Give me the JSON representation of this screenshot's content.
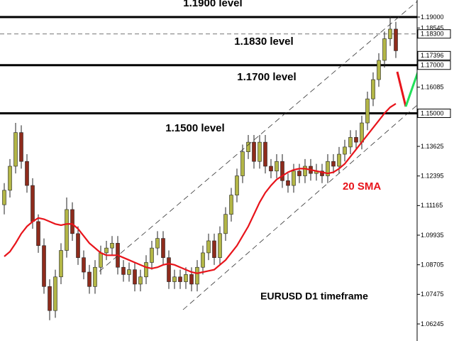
{
  "chart_data": {
    "type": "candlestick",
    "title": "EURUSD D1 timeframe",
    "up_color": "#b3b646",
    "down_color": "#8e2b1c",
    "candles": [
      [
        1.112,
        1.121,
        1.108,
        1.118
      ],
      [
        1.118,
        1.131,
        1.115,
        1.128
      ],
      [
        1.128,
        1.146,
        1.125,
        1.142
      ],
      [
        1.142,
        1.145,
        1.127,
        1.13
      ],
      [
        1.13,
        1.133,
        1.117,
        1.12
      ],
      [
        1.12,
        1.123,
        1.102,
        1.105
      ],
      [
        1.105,
        1.108,
        1.092,
        1.095
      ],
      [
        1.095,
        1.098,
        1.075,
        1.078
      ],
      [
        1.078,
        1.081,
        1.064,
        1.068
      ],
      [
        1.068,
        1.085,
        1.065,
        1.082
      ],
      [
        1.082,
        1.096,
        1.079,
        1.093
      ],
      [
        1.093,
        1.115,
        1.09,
        1.11
      ],
      [
        1.11,
        1.113,
        1.097,
        1.1
      ],
      [
        1.1,
        1.103,
        1.087,
        1.09
      ],
      [
        1.09,
        1.093,
        1.081,
        1.084
      ],
      [
        1.084,
        1.087,
        1.075,
        1.078
      ],
      [
        1.078,
        1.089,
        1.075,
        1.086
      ],
      [
        1.086,
        1.095,
        1.083,
        1.092
      ],
      [
        1.092,
        1.097,
        1.089,
        1.094
      ],
      [
        1.094,
        1.099,
        1.091,
        1.096
      ],
      [
        1.096,
        1.099,
        1.083,
        1.086
      ],
      [
        1.086,
        1.089,
        1.08,
        1.083
      ],
      [
        1.083,
        1.088,
        1.08,
        1.085
      ],
      [
        1.085,
        1.088,
        1.076,
        1.079
      ],
      [
        1.079,
        1.085,
        1.076,
        1.082
      ],
      [
        1.082,
        1.091,
        1.079,
        1.088
      ],
      [
        1.088,
        1.097,
        1.085,
        1.094
      ],
      [
        1.094,
        1.101,
        1.091,
        1.098
      ],
      [
        1.098,
        1.101,
        1.087,
        1.09
      ],
      [
        1.09,
        1.093,
        1.077,
        1.08
      ],
      [
        1.08,
        1.085,
        1.077,
        1.082
      ],
      [
        1.082,
        1.085,
        1.077,
        1.08
      ],
      [
        1.08,
        1.086,
        1.077,
        1.083
      ],
      [
        1.083,
        1.086,
        1.076,
        1.079
      ],
      [
        1.079,
        1.089,
        1.076,
        1.086
      ],
      [
        1.086,
        1.095,
        1.083,
        1.092
      ],
      [
        1.092,
        1.1,
        1.089,
        1.097
      ],
      [
        1.097,
        1.1,
        1.087,
        1.09
      ],
      [
        1.09,
        1.103,
        1.087,
        1.1
      ],
      [
        1.1,
        1.111,
        1.097,
        1.108
      ],
      [
        1.108,
        1.119,
        1.105,
        1.116
      ],
      [
        1.116,
        1.127,
        1.113,
        1.124
      ],
      [
        1.124,
        1.137,
        1.121,
        1.134
      ],
      [
        1.134,
        1.141,
        1.131,
        1.138
      ],
      [
        1.138,
        1.141,
        1.127,
        1.13
      ],
      [
        1.13,
        1.141,
        1.127,
        1.138
      ],
      [
        1.138,
        1.141,
        1.125,
        1.128
      ],
      [
        1.128,
        1.131,
        1.123,
        1.126
      ],
      [
        1.126,
        1.133,
        1.123,
        1.13
      ],
      [
        1.13,
        1.133,
        1.119,
        1.122
      ],
      [
        1.122,
        1.125,
        1.117,
        1.12
      ],
      [
        1.12,
        1.129,
        1.117,
        1.126
      ],
      [
        1.126,
        1.129,
        1.121,
        1.124
      ],
      [
        1.124,
        1.131,
        1.121,
        1.128
      ],
      [
        1.128,
        1.131,
        1.122,
        1.125
      ],
      [
        1.125,
        1.129,
        1.122,
        1.126
      ],
      [
        1.126,
        1.129,
        1.121,
        1.124
      ],
      [
        1.124,
        1.133,
        1.121,
        1.13
      ],
      [
        1.13,
        1.133,
        1.125,
        1.128
      ],
      [
        1.128,
        1.136,
        1.125,
        1.133
      ],
      [
        1.133,
        1.139,
        1.13,
        1.136
      ],
      [
        1.136,
        1.143,
        1.133,
        1.14
      ],
      [
        1.14,
        1.143,
        1.135,
        1.138
      ],
      [
        1.138,
        1.149,
        1.135,
        1.146
      ],
      [
        1.146,
        1.159,
        1.143,
        1.156
      ],
      [
        1.156,
        1.167,
        1.153,
        1.164
      ],
      [
        1.164,
        1.175,
        1.161,
        1.172
      ],
      [
        1.172,
        1.184,
        1.169,
        1.181
      ],
      [
        1.181,
        1.1905,
        1.178,
        1.185
      ],
      [
        1.185,
        1.188,
        1.173,
        1.176
      ]
    ],
    "sma": {
      "name": "20 SMA",
      "color": "#e8141b",
      "values": [
        1.0905,
        1.0925,
        1.096,
        1.1,
        1.103,
        1.105,
        1.1065,
        1.106,
        1.105,
        1.104,
        1.1035,
        1.104,
        1.104,
        1.102,
        1.099,
        1.096,
        1.094,
        1.092,
        1.091,
        1.091,
        1.091,
        1.09,
        1.089,
        1.088,
        1.087,
        1.086,
        1.0855,
        1.086,
        1.087,
        1.0875,
        1.087,
        1.086,
        1.085,
        1.084,
        1.0835,
        1.084,
        1.0845,
        1.085,
        1.087,
        1.089,
        1.092,
        1.095,
        1.099,
        1.103,
        1.108,
        1.113,
        1.117,
        1.12,
        1.1225,
        1.124,
        1.1255,
        1.1265,
        1.127,
        1.127,
        1.1265,
        1.126,
        1.1255,
        1.125,
        1.1255,
        1.127,
        1.129,
        1.132,
        1.135,
        1.138,
        1.141,
        1.144,
        1.147,
        1.15,
        1.1525,
        1.154
      ]
    },
    "levels": [
      {
        "value": 1.19,
        "label": "1.1900 level",
        "style": "solid"
      },
      {
        "value": 1.183,
        "label": "1.1830 level",
        "style": "dashed"
      },
      {
        "value": 1.17,
        "label": "1.1700 level",
        "style": "solid"
      },
      {
        "value": 1.15,
        "label": "1.1500 level",
        "style": "solid"
      }
    ],
    "ylim": [
      1.05536,
      1.19709
    ],
    "yticks": [
      {
        "value": 1.19,
        "label": "1.19000"
      },
      {
        "value": 1.18545,
        "label": "1.18545"
      },
      {
        "value": 1.183,
        "label": "1.18300",
        "boxed": true
      },
      {
        "value": 1.17396,
        "label": "1.17396",
        "boxed": true
      },
      {
        "value": 1.17,
        "label": "1.17000",
        "boxed": true
      },
      {
        "value": 1.16085,
        "label": "1.16085"
      },
      {
        "value": 1.15,
        "label": "1.15000",
        "boxed": true
      },
      {
        "value": 1.13625,
        "label": "1.13625"
      },
      {
        "value": 1.12395,
        "label": "1.12395"
      },
      {
        "value": 1.11165,
        "label": "1.11165"
      },
      {
        "value": 1.09935,
        "label": "1.09935"
      },
      {
        "value": 1.08705,
        "label": "1.08705"
      },
      {
        "value": 1.07475,
        "label": "1.07475"
      },
      {
        "value": 1.06245,
        "label": "1.06245"
      }
    ]
  }
}
